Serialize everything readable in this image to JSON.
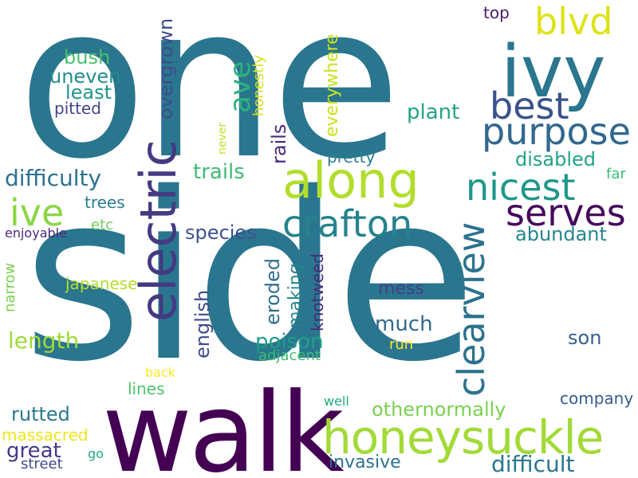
{
  "words": [
    {
      "text": "one",
      "color": "#2a768e"
    },
    {
      "text": "side",
      "color": "#2a768e"
    },
    {
      "text": "walk",
      "color": "#440154"
    },
    {
      "text": "honeysuckle",
      "color": "#a2da37"
    },
    {
      "text": "ivy",
      "color": "#2a768e"
    },
    {
      "text": "electric",
      "color": "#443a83"
    },
    {
      "text": "along",
      "color": "#b2dd2d"
    },
    {
      "text": "purpose",
      "color": "#31688e"
    },
    {
      "text": "best",
      "color": "#3b528b"
    },
    {
      "text": "blvd",
      "color": "#dde318"
    },
    {
      "text": "clearview",
      "color": "#2c728e"
    },
    {
      "text": "nicest",
      "color": "#1f978b"
    },
    {
      "text": "serves",
      "color": "#46085c"
    },
    {
      "text": "crafton",
      "color": "#25838e"
    },
    {
      "text": "ive",
      "color": "#8bd646"
    },
    {
      "text": "ave",
      "color": "#2db27d"
    },
    {
      "text": "difficulty",
      "color": "#2c728e"
    },
    {
      "text": "overgrown",
      "color": "#3e4c8a"
    },
    {
      "text": "bush",
      "color": "#4ac16d"
    },
    {
      "text": "uneven",
      "color": "#228d8d"
    },
    {
      "text": "least",
      "color": "#1f968b"
    },
    {
      "text": "pitted",
      "color": "#404588"
    },
    {
      "text": "honestly",
      "color": "#d8e219"
    },
    {
      "text": "everywhere",
      "color": "#cae11f"
    },
    {
      "text": "rails",
      "color": "#472d7b"
    },
    {
      "text": "plant",
      "color": "#21a585"
    },
    {
      "text": "top",
      "color": "#481a6c"
    },
    {
      "text": "never",
      "color": "#c0df25"
    },
    {
      "text": "pretty",
      "color": "#277f8e"
    },
    {
      "text": "disabled",
      "color": "#20a486"
    },
    {
      "text": "far",
      "color": "#3fbc73"
    },
    {
      "text": "trails",
      "color": "#3fbc73"
    },
    {
      "text": "trees",
      "color": "#287d8e"
    },
    {
      "text": "etc",
      "color": "#6ccd5a"
    },
    {
      "text": "species",
      "color": "#3b528b"
    },
    {
      "text": "abundant",
      "color": "#24878e"
    },
    {
      "text": "enjoyable",
      "color": "#482878"
    },
    {
      "text": "japanese",
      "color": "#b5de2b"
    },
    {
      "text": "english",
      "color": "#3e4c8a"
    },
    {
      "text": "eroded",
      "color": "#2e6e8e"
    },
    {
      "text": "making",
      "color": "#25838e"
    },
    {
      "text": "knotweed",
      "color": "#482878"
    },
    {
      "text": "mess",
      "color": "#424086"
    },
    {
      "text": "narrow",
      "color": "#7ad151"
    },
    {
      "text": "much",
      "color": "#31688e"
    },
    {
      "text": "length",
      "color": "#a0da39"
    },
    {
      "text": "poison",
      "color": "#1f9e89"
    },
    {
      "text": "adjacent",
      "color": "#3fbc73"
    },
    {
      "text": "son",
      "color": "#355f8d"
    },
    {
      "text": "run",
      "color": "#fde725"
    },
    {
      "text": "back",
      "color": "#fde725"
    },
    {
      "text": "lines",
      "color": "#4ac16d"
    },
    {
      "text": "company",
      "color": "#355f8d"
    },
    {
      "text": "rutted",
      "color": "#2a788e"
    },
    {
      "text": "othernormally",
      "color": "#7ad151"
    },
    {
      "text": "well",
      "color": "#22a884"
    },
    {
      "text": "massacred",
      "color": "#f1e51d"
    },
    {
      "text": "great",
      "color": "#443a83"
    },
    {
      "text": "go",
      "color": "#22a884"
    },
    {
      "text": "street",
      "color": "#3e4a89"
    },
    {
      "text": "invasive",
      "color": "#2c728e"
    },
    {
      "text": "difficult",
      "color": "#2a768e"
    }
  ]
}
